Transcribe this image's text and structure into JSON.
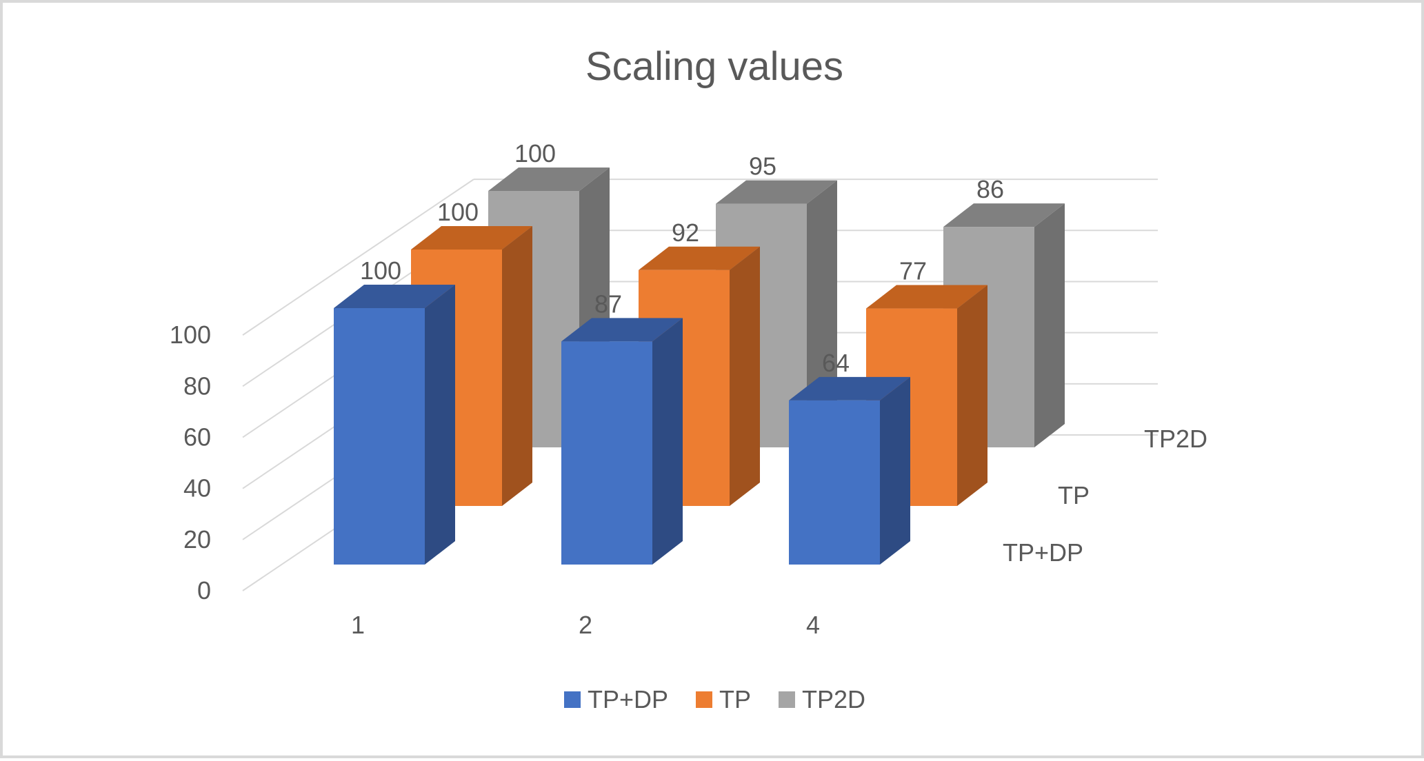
{
  "chart_data": {
    "type": "bar",
    "subtype": "3d-clustered-column",
    "title": "Scaling values",
    "categories": [
      "1",
      "2",
      "4"
    ],
    "series": [
      {
        "name": "TP+DP",
        "values": [
          100,
          87,
          64
        ],
        "color": "#4472C4",
        "side_color": "#2E4B83",
        "top_color": "#35589A"
      },
      {
        "name": "TP",
        "values": [
          100,
          92,
          77
        ],
        "color": "#ED7D31",
        "side_color": "#A0521E",
        "top_color": "#C2621F"
      },
      {
        "name": "TP2D",
        "values": [
          100,
          95,
          86
        ],
        "color": "#A5A5A5",
        "side_color": "#707070",
        "top_color": "#808080"
      }
    ],
    "yticks": [
      "0",
      "20",
      "40",
      "60",
      "80",
      "100"
    ],
    "ylim": [
      0,
      100
    ],
    "depth_labels": [
      "TP+DP",
      "TP",
      "TP2D"
    ],
    "grid": true,
    "legend": "bottom"
  }
}
